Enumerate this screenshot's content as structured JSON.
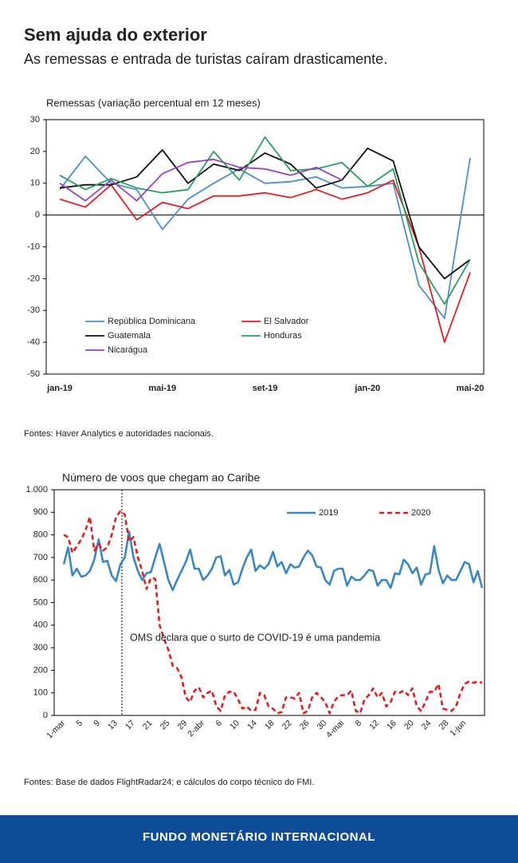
{
  "header": {
    "title": "Sem ajuda do exterior",
    "subtitle": "As remessas e entrada de turistas caíram drasticamente."
  },
  "chart_data": [
    {
      "type": "line",
      "title": "Remessas (variação percentual em 12 meses)",
      "categories": [
        "jan-19",
        null,
        null,
        null,
        "mai-19",
        null,
        null,
        null,
        "set-19",
        null,
        null,
        null,
        "jan-20",
        null,
        null,
        null,
        "mai-20"
      ],
      "series": [
        {
          "name": "República Dominicana",
          "color": "#4a8fd0",
          "values": [
            8,
            18.5,
            10,
            8,
            -4.5,
            5,
            10,
            14.5,
            10,
            10.5,
            12,
            8.5,
            9,
            10,
            -22,
            -32.5,
            18
          ]
        },
        {
          "name": "El Salvador",
          "color": "#e02020",
          "values": [
            5,
            2.5,
            9.5,
            -1.5,
            4,
            2,
            6,
            6,
            7,
            5.5,
            8,
            5,
            7,
            11,
            -10,
            -40,
            -18
          ]
        },
        {
          "name": "Guatemala",
          "color": "#111111",
          "values": [
            8.5,
            9.5,
            9.5,
            12,
            20.5,
            10,
            16,
            14,
            19.5,
            16,
            8.5,
            11,
            21,
            17,
            -10,
            -20,
            -14
          ]
        },
        {
          "name": "Honduras",
          "color": "#2aa060",
          "values": [
            12.5,
            8,
            11.5,
            8.5,
            7,
            8,
            20,
            11,
            24.5,
            14,
            14.5,
            16.5,
            9,
            14.5,
            -15,
            -28,
            -14
          ]
        },
        {
          "name": "Nicarágua",
          "color": "#9b40c0",
          "values": [
            10,
            4.5,
            11,
            4.5,
            13,
            16.5,
            17.5,
            15,
            14.5,
            12.5,
            15,
            11,
            null,
            null,
            null,
            null,
            null
          ]
        }
      ],
      "ylim": [
        -50,
        30
      ],
      "yticks": [
        30,
        20,
        10,
        0,
        -10,
        -20,
        -30,
        -40,
        -50
      ],
      "legend": "lower left",
      "legend_columns": 2,
      "source": "Fontes: Haver Analytics e autoridades nacionais."
    },
    {
      "type": "line",
      "title": "Número de voos que chegam ao Caribe",
      "categories": [
        "1-mar",
        null,
        null,
        null,
        "5",
        null,
        null,
        null,
        "9",
        null,
        null,
        null,
        "13",
        null,
        null,
        null,
        "17",
        null,
        null,
        null,
        "21",
        null,
        null,
        null,
        "25",
        null,
        null,
        null,
        "29",
        null,
        null,
        null,
        "2-abr",
        null,
        null,
        null,
        "6",
        null,
        null,
        null,
        "10",
        null,
        null,
        null,
        "14",
        null,
        null,
        null,
        "18",
        null,
        null,
        null,
        "22",
        null,
        null,
        null,
        "26",
        null,
        null,
        null,
        "30",
        null,
        null,
        null,
        "4-mai",
        null,
        null,
        null,
        "8",
        null,
        null,
        null,
        "12",
        null,
        null,
        null,
        "16",
        null,
        null,
        null,
        "20",
        null,
        null,
        null,
        "24",
        null,
        null,
        null,
        "28",
        null,
        null,
        null,
        "1-jun",
        null,
        null,
        null,
        null
      ],
      "series": [
        {
          "name": "2019",
          "color": "#3a87c8",
          "line_style": "solid",
          "values": [
            670,
            745,
            620,
            650,
            615,
            620,
            640,
            690,
            780,
            680,
            685,
            620,
            595,
            670,
            700,
            815,
            700,
            640,
            600,
            630,
            635,
            700,
            760,
            680,
            600,
            555,
            600,
            640,
            680,
            735,
            650,
            650,
            600,
            620,
            650,
            700,
            705,
            620,
            645,
            580,
            590,
            650,
            700,
            735,
            640,
            665,
            650,
            670,
            725,
            660,
            680,
            630,
            670,
            655,
            660,
            700,
            730,
            710,
            660,
            655,
            600,
            580,
            640,
            650,
            650,
            575,
            615,
            600,
            600,
            620,
            645,
            640,
            575,
            600,
            600,
            565,
            630,
            625,
            690,
            670,
            630,
            655,
            580,
            625,
            630,
            750,
            645,
            585,
            620,
            600,
            600,
            640,
            680,
            670,
            590,
            640,
            565
          ]
        },
        {
          "name": "2020",
          "color": "#e0201c",
          "line_style": "dashed",
          "values": [
            800,
            790,
            720,
            750,
            780,
            820,
            880,
            730,
            760,
            730,
            745,
            800,
            880,
            905,
            890,
            770,
            790,
            700,
            640,
            560,
            610,
            605,
            400,
            340,
            290,
            220,
            210,
            170,
            80,
            60,
            110,
            125,
            80,
            100,
            110,
            40,
            20,
            90,
            105,
            105,
            70,
            30,
            40,
            20,
            25,
            100,
            90,
            40,
            30,
            10,
            15,
            80,
            80,
            75,
            100,
            10,
            20,
            80,
            100,
            80,
            60,
            10,
            60,
            85,
            90,
            90,
            110,
            20,
            10,
            70,
            90,
            120,
            80,
            100,
            40,
            60,
            105,
            100,
            110,
            90,
            120,
            40,
            20,
            60,
            105,
            105,
            140,
            30,
            25,
            20,
            40,
            100,
            140,
            150,
            145,
            150,
            145
          ]
        }
      ],
      "ylim": [
        0,
        1000
      ],
      "yticks": [
        0,
        100,
        200,
        300,
        400,
        500,
        600,
        700,
        800,
        900,
        {
          "value": 1000,
          "label": "1.000"
        }
      ],
      "legend": "upper right",
      "legend_columns": 2,
      "annotation": "OMS declara que o surto de COVID-19 é uma pandemia",
      "source": "Fontes: Base de dados FlightRadar24; e cálculos do corpo técnico do FMI."
    }
  ],
  "footer": "FUNDO MONETÁRIO INTERNACIONAL"
}
